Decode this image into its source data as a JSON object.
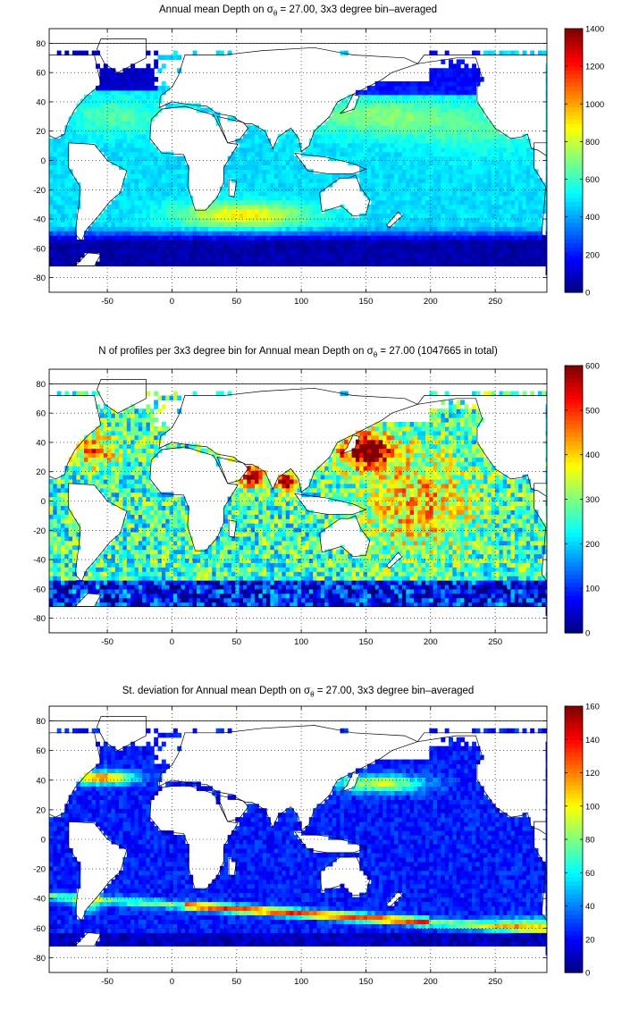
{
  "colormap": "jet",
  "chart_data": [
    {
      "type": "heatmap",
      "title_prefix": "Annual mean Depth on ",
      "title_sigma": "σ",
      "title_sub": "θ",
      "title_suffix": " = 27.00, 3x3 degree bin–averaged",
      "xlim": [
        -95,
        290
      ],
      "ylim": [
        -90,
        90
      ],
      "xticks": [
        -50,
        0,
        50,
        100,
        150,
        200,
        250
      ],
      "yticks": [
        80,
        60,
        40,
        20,
        0,
        -20,
        -40,
        -60,
        -80
      ],
      "clim": [
        0,
        1400
      ],
      "cticks": [
        1400,
        1200,
        1000,
        800,
        600,
        400,
        200,
        0
      ],
      "grid": true,
      "field": "depth",
      "description_values": {
        "southern_ocean_south_of_55S": 150,
        "south_indian_gyre_40S": 900,
        "north_pacific_30N": 800,
        "tropical_oceans": 550,
        "subpolar_north_pacific": 200
      }
    },
    {
      "type": "heatmap",
      "title_prefix": "N of profiles per 3x3 degree bin for Annual mean Depth on ",
      "title_sigma": "σ",
      "title_sub": "θ",
      "title_suffix": " = 27.00 (1047665 in total)",
      "xlim": [
        -95,
        290
      ],
      "ylim": [
        -90,
        90
      ],
      "xticks": [
        -50,
        0,
        50,
        100,
        150,
        200,
        250
      ],
      "yticks": [
        80,
        60,
        40,
        20,
        0,
        -20,
        -40,
        -60,
        -80
      ],
      "clim": [
        0,
        600
      ],
      "cticks": [
        600,
        500,
        400,
        300,
        200,
        100,
        0
      ],
      "grid": true,
      "field": "count",
      "total_profiles": 1047665,
      "description_values": {
        "kuroshio_region": 600,
        "arabian_sea_bay_of_bengal": 600,
        "open_ocean_typical": 300,
        "southern_ocean_south_of_55S": 60
      }
    },
    {
      "type": "heatmap",
      "title_prefix": "St. deviation for Annual mean Depth on ",
      "title_sigma": "σ",
      "title_sub": "θ",
      "title_suffix": " = 27.00, 3x3 degree bin–averaged",
      "xlim": [
        -95,
        290
      ],
      "ylim": [
        -90,
        90
      ],
      "xticks": [
        -50,
        0,
        50,
        100,
        150,
        200,
        250
      ],
      "yticks": [
        80,
        60,
        40,
        20,
        0,
        -20,
        -40,
        -60,
        -80
      ],
      "clim": [
        0,
        160
      ],
      "cticks": [
        160,
        140,
        120,
        100,
        80,
        60,
        40,
        20,
        0
      ],
      "grid": true,
      "field": "std",
      "description_values": {
        "antarctic_circumpolar_current_front": 140,
        "gulf_stream": 130,
        "kuroshio_extension": 100,
        "open_ocean_typical": 25
      }
    }
  ]
}
